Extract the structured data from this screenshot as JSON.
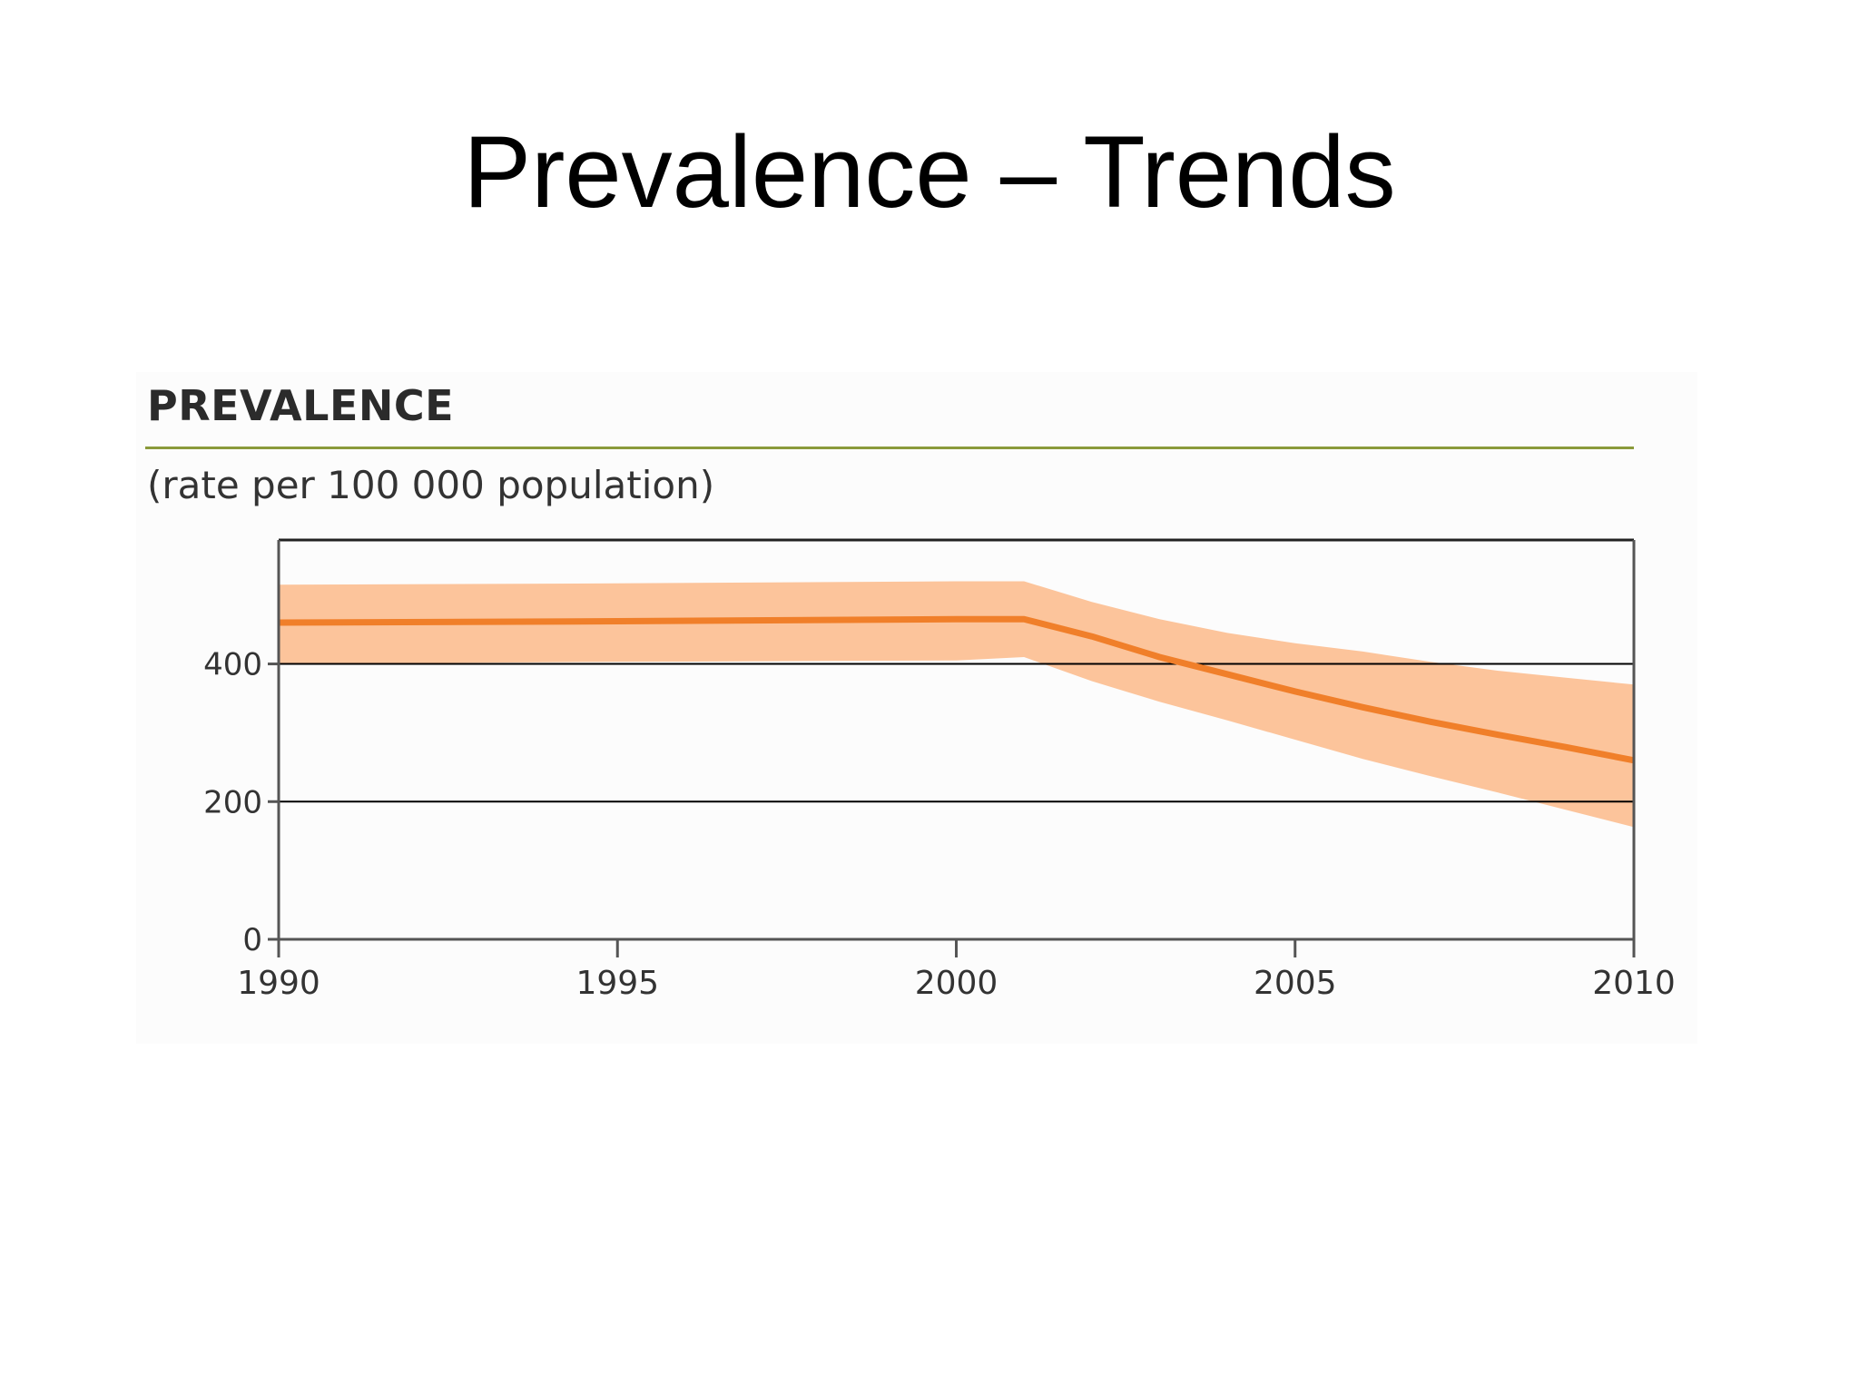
{
  "slide": {
    "title": "Prevalence – Trends"
  },
  "chart_data": {
    "type": "line",
    "title": "PREVALENCE",
    "subtitle": "(rate per 100 000 population)",
    "xlabel": "",
    "ylabel": "",
    "x_ticks": [
      1990,
      1995,
      2000,
      2005,
      2010
    ],
    "y_ticks": [
      0,
      200,
      400
    ],
    "xlim": [
      1990,
      2010
    ],
    "ylim": [
      0,
      580
    ],
    "grid": "horizontal",
    "series": [
      {
        "x": [
          1990,
          1995,
          2000,
          2001,
          2002,
          2003,
          2004,
          2005,
          2006,
          2007,
          2008,
          2009,
          2010
        ],
        "values": [
          460,
          462,
          465,
          465,
          440,
          410,
          385,
          360,
          337,
          316,
          297,
          279,
          260
        ],
        "lower": [
          400,
          403,
          405,
          410,
          375,
          345,
          318,
          290,
          262,
          237,
          213,
          188,
          163
        ],
        "upper": [
          515,
          517,
          520,
          520,
          490,
          465,
          445,
          430,
          418,
          403,
          390,
          380,
          370
        ]
      }
    ],
    "colors": {
      "line": "#f07f2a",
      "band": "#fcc49b",
      "axis": "#000000",
      "grid": "#000000"
    }
  }
}
